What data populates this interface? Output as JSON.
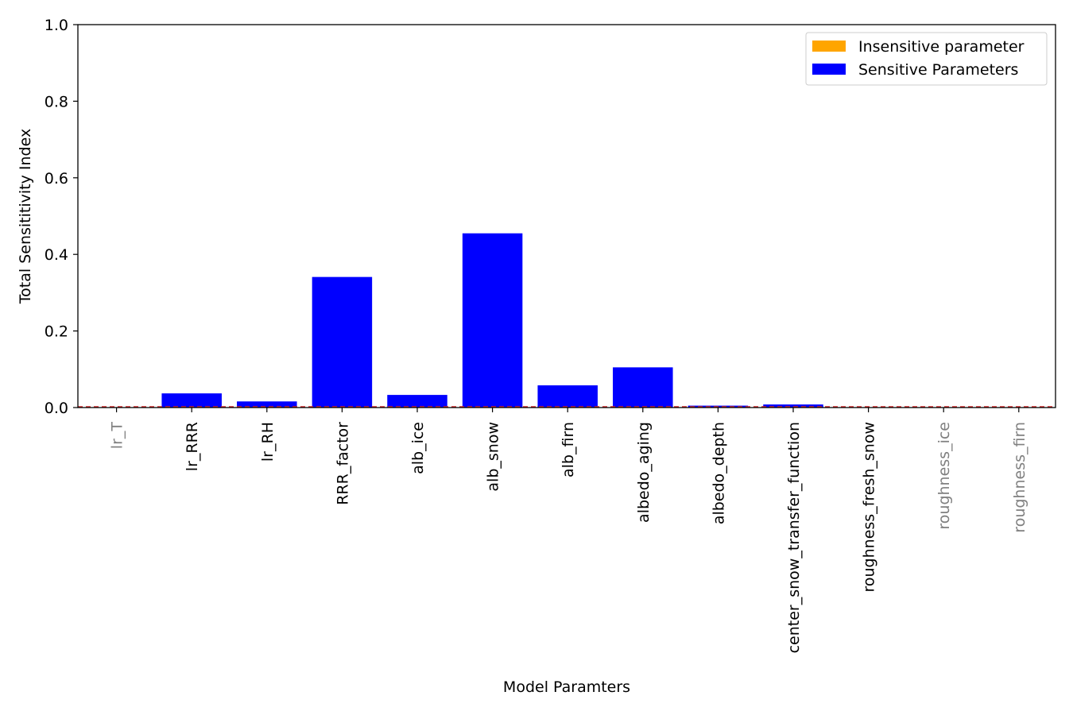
{
  "chart_data": {
    "type": "bar",
    "title": "",
    "xlabel": "Model Paramters",
    "ylabel": "Total Sensititivity Index",
    "ylim": [
      0,
      1.0
    ],
    "yticks": [
      "0.0",
      "0.2",
      "0.4",
      "0.6",
      "0.8",
      "1.0"
    ],
    "grid": false,
    "legend_position": "top-right",
    "categories": [
      "lr_T",
      "lr_RRR",
      "lr_RH",
      "RRR_factor",
      "alb_ice",
      "alb_snow",
      "alb_firn",
      "albedo_aging",
      "albedo_depth",
      "center_snow_transfer_function",
      "roughness_fresh_snow",
      "roughness_ice",
      "roughness_firn"
    ],
    "values": [
      0.0,
      0.037,
      0.016,
      0.341,
      0.033,
      0.455,
      0.058,
      0.105,
      0.005,
      0.008,
      0.001,
      0.0,
      0.0
    ],
    "sensitive": [
      false,
      true,
      true,
      true,
      true,
      true,
      true,
      true,
      true,
      true,
      true,
      false,
      false
    ],
    "threshold": 0.002,
    "legend": [
      {
        "label": "Insensitive parameter",
        "color": "#ffa500"
      },
      {
        "label": "Sensitive Parameters",
        "color": "#0000ff"
      }
    ],
    "colors": {
      "sensitive": "#0000ff",
      "insensitive": "#ffa500",
      "insensitive_label": "#808080",
      "threshold_line": "#d62728"
    }
  }
}
